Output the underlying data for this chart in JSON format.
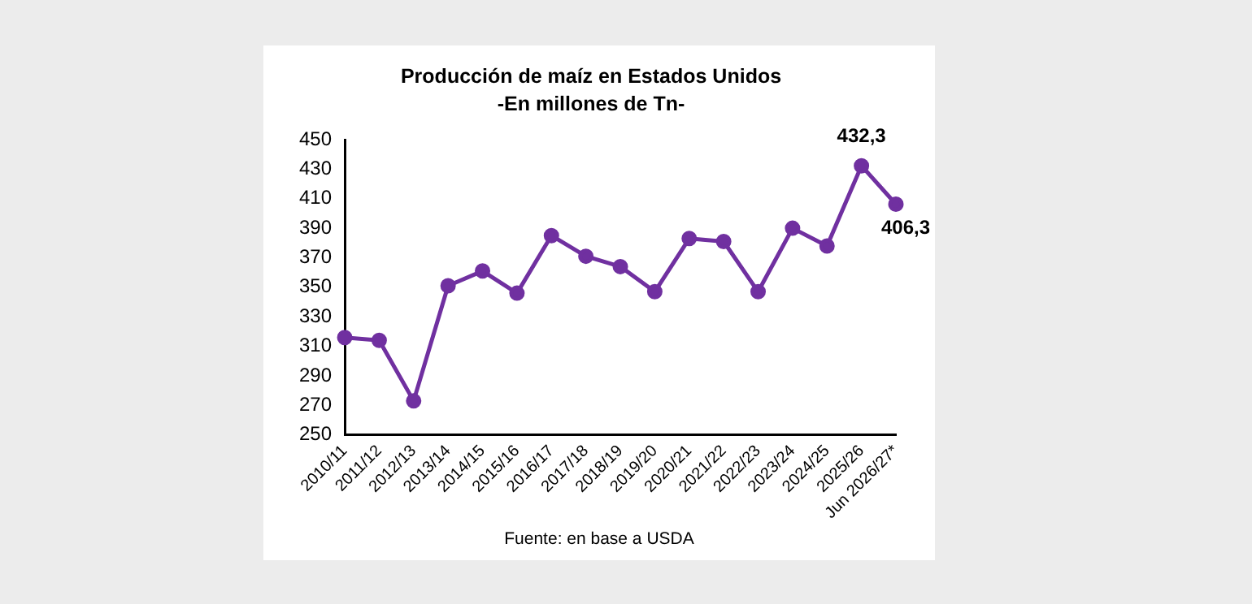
{
  "chart_data": {
    "type": "line",
    "title": "Producción de maíz en Estados Unidos",
    "subtitle": "-En millones de Tn-",
    "categories": [
      "2010/11",
      "2011/12",
      "2012/13",
      "2013/14",
      "2014/15",
      "2015/16",
      "2016/17",
      "2017/18",
      "2018/19",
      "2019/20",
      "2020/21",
      "2021/22",
      "2022/23",
      "2023/24",
      "2024/25",
      "2025/26",
      "Jun 2026/27*"
    ],
    "series": [
      {
        "color": "#7030a0",
        "values": [
          316,
          314,
          273,
          351,
          361,
          346,
          385,
          371,
          364,
          347,
          383,
          381,
          347,
          390,
          378,
          432.3,
          406.3
        ],
        "value_labels": [
          null,
          null,
          null,
          null,
          null,
          null,
          null,
          null,
          null,
          null,
          null,
          null,
          null,
          null,
          null,
          "432,3",
          "406,3"
        ]
      }
    ],
    "ylim": [
      250,
      450
    ],
    "yticks": [
      250,
      270,
      290,
      310,
      330,
      350,
      370,
      390,
      410,
      430,
      450
    ],
    "grid": false,
    "legend": false,
    "marker": "circle",
    "line_style": "solid",
    "annotations": [
      "Fuente: en base a USDA"
    ]
  }
}
